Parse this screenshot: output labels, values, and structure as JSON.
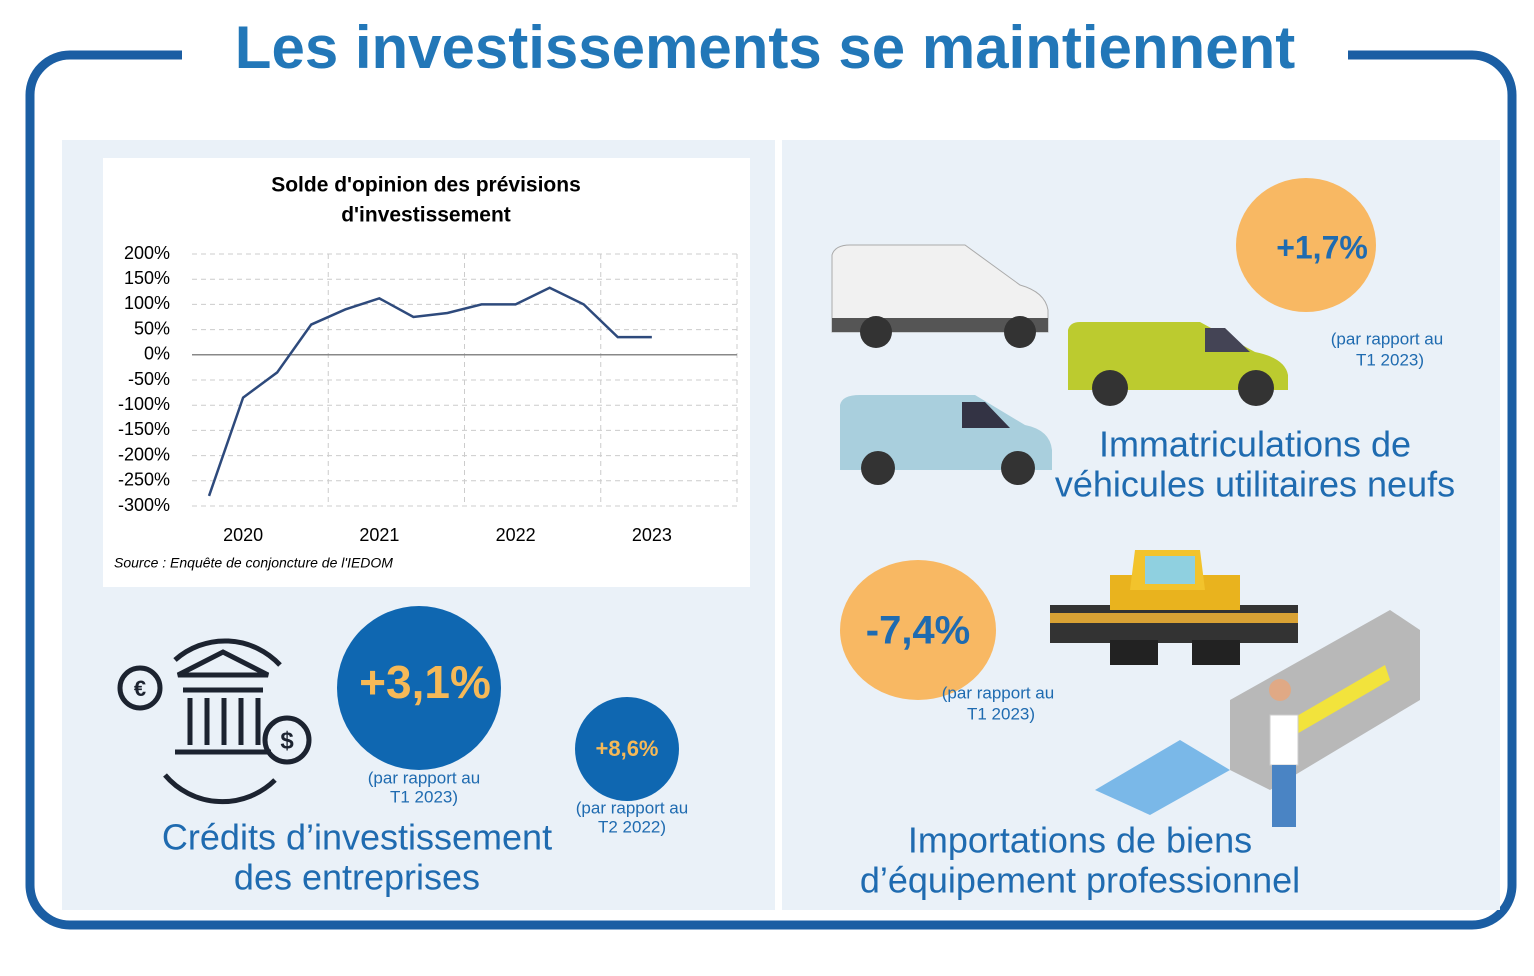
{
  "title": "Les investissements se maintiennent",
  "chart_data": {
    "type": "line",
    "title": [
      "Solde d'opinion des prévisions",
      "d'investissement"
    ],
    "categories": [
      null,
      "2020",
      null,
      null,
      null,
      "2021",
      null,
      null,
      null,
      "2022",
      null,
      null,
      null,
      "2023"
    ],
    "series": [
      {
        "name": "Solde d'opinion",
        "color": "#2e4a7c",
        "values": [
          -280,
          -85,
          -35,
          60,
          90,
          112,
          75,
          83,
          100,
          100,
          133,
          100,
          35,
          35
        ]
      }
    ],
    "ylim": [
      -300,
      200
    ],
    "yticks": [
      {
        "value": 200,
        "label": "200%"
      },
      {
        "value": 150,
        "label": "150%"
      },
      {
        "value": 100,
        "label": "100%"
      },
      {
        "value": 50,
        "label": "50%"
      },
      {
        "value": 0,
        "label": "0%"
      },
      {
        "value": -50,
        "label": "-50%"
      },
      {
        "value": -100,
        "label": "-100%"
      },
      {
        "value": -150,
        "label": "-150%"
      },
      {
        "value": -200,
        "label": "-200%"
      },
      {
        "value": -250,
        "label": "-250%"
      },
      {
        "value": -300,
        "label": "-300%"
      }
    ],
    "grid": true,
    "source": "Source : Enquête de conjoncture de l'IEDOM"
  },
  "credits": {
    "label": [
      "Crédits d’investissement",
      "des entreprises"
    ],
    "main": {
      "value": "+3,1%",
      "note": [
        "(par rapport au",
        "T1 2023)"
      ]
    },
    "second": {
      "value": "+8,6%",
      "note": [
        "(par rapport au",
        "T2 2022)"
      ]
    }
  },
  "vehicles": {
    "label": [
      "Immatriculations de",
      "véhicules utilitaires neufs"
    ],
    "value": "+1,7%",
    "note": [
      "(par rapport au",
      "T1 2023)"
    ]
  },
  "imports": {
    "label": [
      "Importations de biens",
      "d’équipement professionnel"
    ],
    "value": "-7,4%",
    "note": [
      "(par rapport au",
      "T1 2023)"
    ]
  }
}
